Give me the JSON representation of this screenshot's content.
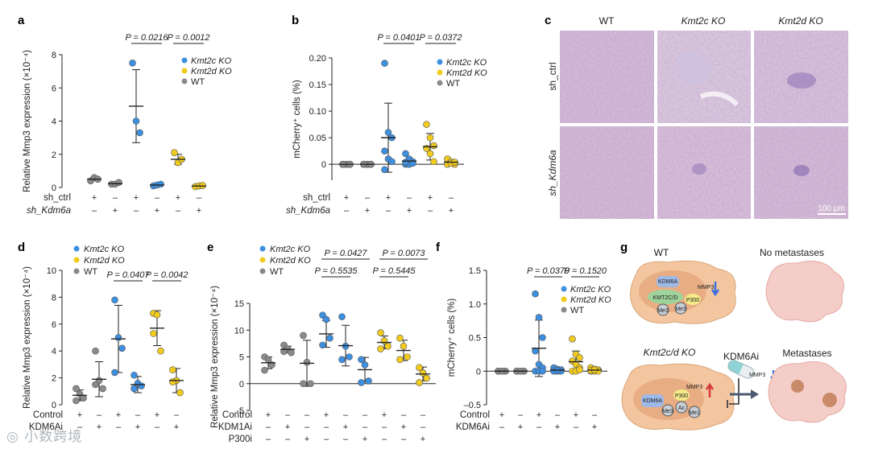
{
  "colors": {
    "blue": "#3d8fe0",
    "yellow": "#f2cb1d",
    "gray": "#8a8a8a",
    "purple": "#c9a9cc"
  },
  "legend": {
    "kmt2c": "Kmt2c KO",
    "kmt2d": "Kmt2d KO",
    "wt": "WT"
  },
  "chart_data": [
    {
      "id": "a",
      "panel_label": "a",
      "type": "scatter",
      "ylabel": "Relative Mmp3 expression (×10⁻⁴)",
      "ylim": [
        0,
        8
      ],
      "yticks": [
        0,
        2,
        4,
        6,
        8
      ],
      "row_names": [
        "sh_ctrl",
        "sh_Kdm6a"
      ],
      "conditions": [
        [
          "+",
          "–"
        ],
        [
          "–",
          "+"
        ],
        [
          "+",
          "–"
        ],
        [
          "–",
          "+"
        ],
        [
          "+",
          "–"
        ],
        [
          "–",
          "+"
        ]
      ],
      "groups": [
        {
          "genotype": "wt",
          "points": [
            0.4,
            0.6,
            0.5
          ],
          "mean": 0.5,
          "sd": 0.1
        },
        {
          "genotype": "wt",
          "points": [
            0.2,
            0.2,
            0.3
          ],
          "mean": 0.23,
          "sd": 0.05
        },
        {
          "genotype": "kmt2c",
          "points": [
            7.5,
            4.0,
            3.3
          ],
          "mean": 4.9,
          "sd": 2.2
        },
        {
          "genotype": "kmt2c",
          "points": [
            0.1,
            0.15,
            0.2
          ],
          "mean": 0.15,
          "sd": 0.05
        },
        {
          "genotype": "kmt2d",
          "points": [
            2.1,
            1.5,
            1.7
          ],
          "mean": 1.7,
          "sd": 0.3
        },
        {
          "genotype": "kmt2d",
          "points": [
            0.05,
            0.1,
            0.12
          ],
          "mean": 0.09,
          "sd": 0.03
        }
      ],
      "comparisons": [
        {
          "from": 2,
          "to": 3,
          "label": "P = 0.0216"
        },
        {
          "from": 4,
          "to": 5,
          "label": "P = 0.0012"
        }
      ]
    },
    {
      "id": "b",
      "panel_label": "b",
      "type": "scatter",
      "ylabel": "mCherry⁺ cells (%)",
      "ylim": [
        -0.03,
        0.2
      ],
      "yticks": [
        0,
        0.05,
        0.1,
        0.15,
        0.2
      ],
      "ytick_labels": [
        "0",
        "0.05",
        "0.10",
        "0.15",
        "0.20"
      ],
      "row_names": [
        "sh_ctrl",
        "sh_Kdm6a"
      ],
      "conditions": [
        [
          "+",
          "–"
        ],
        [
          "–",
          "+"
        ],
        [
          "+",
          "–"
        ],
        [
          "–",
          "+"
        ],
        [
          "+",
          "–"
        ],
        [
          "–",
          "+"
        ]
      ],
      "groups": [
        {
          "genotype": "wt",
          "points": [
            0,
            0,
            0,
            0,
            0,
            0,
            0
          ],
          "mean": 0,
          "sd": 0
        },
        {
          "genotype": "wt",
          "points": [
            0,
            0,
            0,
            0,
            0,
            0,
            0
          ],
          "mean": 0,
          "sd": 0
        },
        {
          "genotype": "kmt2c",
          "points": [
            0.19,
            0.06,
            0.05,
            0.025,
            0.01,
            0.005,
            -0.01
          ],
          "mean": 0.05,
          "sd": 0.065
        },
        {
          "genotype": "kmt2c",
          "points": [
            0.02,
            0.01,
            0.005,
            0,
            0,
            0.002,
            0.004
          ],
          "mean": 0.006,
          "sd": 0.004
        },
        {
          "genotype": "kmt2d",
          "points": [
            0.075,
            0.05,
            0.035,
            0.03,
            0.02,
            0.005
          ],
          "mean": 0.033,
          "sd": 0.025
        },
        {
          "genotype": "kmt2d",
          "points": [
            0.01,
            0.005,
            0,
            0,
            0.002,
            0.004
          ],
          "mean": 0.004,
          "sd": 0.004
        }
      ],
      "comparisons": [
        {
          "from": 2,
          "to": 3,
          "label": "P = 0.0401"
        },
        {
          "from": 4,
          "to": 5,
          "label": "P = 0.0372"
        }
      ]
    },
    {
      "id": "d",
      "panel_label": "d",
      "type": "scatter",
      "ylabel": "Relative Mmp3 expression (×10⁻⁴)",
      "ylim": [
        0,
        10
      ],
      "yticks": [
        0,
        2,
        4,
        6,
        8,
        10
      ],
      "row_names": [
        "Control",
        "KDM6Ai"
      ],
      "conditions": [
        [
          "+",
          "–"
        ],
        [
          "–",
          "+"
        ],
        [
          "+",
          "–"
        ],
        [
          "–",
          "+"
        ],
        [
          "+",
          "–"
        ],
        [
          "–",
          "+"
        ]
      ],
      "groups": [
        {
          "genotype": "wt",
          "points": [
            1.2,
            0.8,
            0.5,
            0.3
          ],
          "mean": 0.7,
          "sd": 0.4
        },
        {
          "genotype": "wt",
          "points": [
            4.0,
            1.8,
            1.2,
            1.5
          ],
          "mean": 1.9,
          "sd": 1.3
        },
        {
          "genotype": "kmt2c",
          "points": [
            7.8,
            5.0,
            4.2,
            2.4
          ],
          "mean": 4.9,
          "sd": 2.5
        },
        {
          "genotype": "kmt2c",
          "points": [
            2.2,
            1.6,
            1.4,
            1.2
          ],
          "mean": 1.5,
          "sd": 0.6
        },
        {
          "genotype": "kmt2d",
          "points": [
            6.8,
            6.7,
            4.0,
            5.3
          ],
          "mean": 5.7,
          "sd": 1.3
        },
        {
          "genotype": "kmt2d",
          "points": [
            2.6,
            1.8,
            0.9,
            1.7
          ],
          "mean": 1.8,
          "sd": 0.9
        }
      ],
      "comparisons": [
        {
          "from": 2,
          "to": 3,
          "label": "P = 0.0407"
        },
        {
          "from": 4,
          "to": 5,
          "label": "P = 0.0042"
        }
      ]
    },
    {
      "id": "e",
      "panel_label": "e",
      "type": "scatter",
      "ylabel": "Relative Mmp3 expression (×10⁻⁴)",
      "ylim": [
        -5,
        15
      ],
      "yticks": [
        -5,
        0,
        5,
        10,
        15
      ],
      "row_names": [
        "Control",
        "KDM1Ai",
        "P300i"
      ],
      "conditions": [
        [
          "+",
          "–",
          "–"
        ],
        [
          "–",
          "+",
          "–"
        ],
        [
          "–",
          "–",
          "+"
        ],
        [
          "+",
          "–",
          "–"
        ],
        [
          "–",
          "+",
          "–"
        ],
        [
          "–",
          "–",
          "+"
        ],
        [
          "+",
          "–",
          "–"
        ],
        [
          "–",
          "+",
          "–"
        ],
        [
          "–",
          "–",
          "+"
        ]
      ],
      "groups": [
        {
          "genotype": "wt",
          "points": [
            5.0,
            4.5,
            3.5,
            2.5
          ],
          "mean": 3.9,
          "sd": 1.1
        },
        {
          "genotype": "wt",
          "points": [
            7.2,
            6.5,
            5.8,
            6.0
          ],
          "mean": 6.4,
          "sd": 0.6
        },
        {
          "genotype": "wt",
          "points": [
            9.0,
            4.0,
            0,
            0
          ],
          "mean": 3.8,
          "sd": 4.3
        },
        {
          "genotype": "kmt2c",
          "points": [
            12.8,
            12.0,
            8.5,
            7.2
          ],
          "mean": 9.3,
          "sd": 2.5
        },
        {
          "genotype": "kmt2c",
          "points": [
            12.5,
            7.0,
            5.0,
            4.5
          ],
          "mean": 7.1,
          "sd": 3.8
        },
        {
          "genotype": "kmt2c",
          "points": [
            4.5,
            3.5,
            0.5,
            0.2
          ],
          "mean": 2.6,
          "sd": 2.3
        },
        {
          "genotype": "kmt2d",
          "points": [
            9.5,
            8.0,
            7.0,
            6.5
          ],
          "mean": 7.7,
          "sd": 1.2
        },
        {
          "genotype": "kmt2d",
          "points": [
            8.5,
            7.0,
            5.0,
            4.5
          ],
          "mean": 6.2,
          "sd": 1.9
        },
        {
          "genotype": "kmt2d",
          "points": [
            3.0,
            2.0,
            1.0,
            0.2
          ],
          "mean": 1.8,
          "sd": 1.3
        }
      ],
      "comparisons": [
        {
          "from": 3,
          "to": 4,
          "label": "P = 0.5535",
          "level": 0
        },
        {
          "from": 3,
          "to": 5,
          "label": "P = 0.0427",
          "level": 1
        },
        {
          "from": 6,
          "to": 7,
          "label": "P = 0.5445",
          "level": 0
        },
        {
          "from": 6,
          "to": 8,
          "label": "P = 0.0073",
          "level": 1
        }
      ]
    },
    {
      "id": "f",
      "panel_label": "f",
      "type": "scatter",
      "ylabel": "mCherry⁺ cells (%)",
      "ylim": [
        -0.5,
        1.5
      ],
      "yticks": [
        -0.5,
        0,
        0.5,
        1.0,
        1.5
      ],
      "ytick_labels": [
        "–0.5",
        "0",
        "0.5",
        "1.0",
        "1.5"
      ],
      "row_names": [
        "Control",
        "KDM6Ai"
      ],
      "conditions": [
        [
          "+",
          "–"
        ],
        [
          "–",
          "+"
        ],
        [
          "+",
          "–"
        ],
        [
          "–",
          "+"
        ],
        [
          "+",
          "–"
        ],
        [
          "–",
          "+"
        ]
      ],
      "groups": [
        {
          "genotype": "wt",
          "points": [
            0,
            0,
            0,
            0,
            0,
            0,
            0,
            0
          ],
          "mean": 0,
          "sd": 0
        },
        {
          "genotype": "wt",
          "points": [
            0,
            0,
            0,
            0,
            0,
            0,
            0,
            0
          ],
          "mean": 0,
          "sd": 0
        },
        {
          "genotype": "kmt2c",
          "points": [
            1.15,
            0.8,
            0.5,
            0.3,
            0.1,
            0.05,
            0,
            0,
            0
          ],
          "mean": 0.34,
          "sd": 0.42
        },
        {
          "genotype": "kmt2c",
          "points": [
            0.05,
            0.03,
            0.02,
            0,
            0,
            0,
            0,
            0.01
          ],
          "mean": 0.015,
          "sd": 0.02
        },
        {
          "genotype": "kmt2d",
          "points": [
            0.48,
            0.25,
            0.2,
            0.15,
            0.1,
            0.05,
            0,
            0,
            0.02
          ],
          "mean": 0.14,
          "sd": 0.16
        },
        {
          "genotype": "kmt2d",
          "points": [
            0.05,
            0.03,
            0.02,
            0,
            0,
            0,
            0.01,
            0.02
          ],
          "mean": 0.016,
          "sd": 0.017
        }
      ],
      "comparisons": [
        {
          "from": 2,
          "to": 3,
          "label": "P = 0.0379"
        },
        {
          "from": 4,
          "to": 5,
          "label": "P = 0.1520"
        }
      ]
    }
  ],
  "histology": {
    "panel_label": "c",
    "columns": [
      "WT",
      "Kmt2c KO",
      "Kmt2d KO"
    ],
    "rows": [
      "sh_ctrl",
      "sh_Kdm6a"
    ],
    "scalebar": "100 µm"
  },
  "schematic": {
    "panel_label": "g",
    "top_title": "WT",
    "bottom_title": "Kmt2c/d KO",
    "no_met": "No metastases",
    "met": "Metastases",
    "drug": "KDM6Ai",
    "proteins_top": [
      "KDM6A",
      "KMT2C/D",
      "MMP3",
      "P300",
      "Me3",
      "Me3"
    ],
    "proteins_bottom": [
      "KDM6A",
      "MMP3",
      "P300",
      "Me3",
      "Ac",
      "Me1"
    ],
    "mmp3_inhib": "MMP3"
  },
  "watermark": "◎ 小数跨境"
}
